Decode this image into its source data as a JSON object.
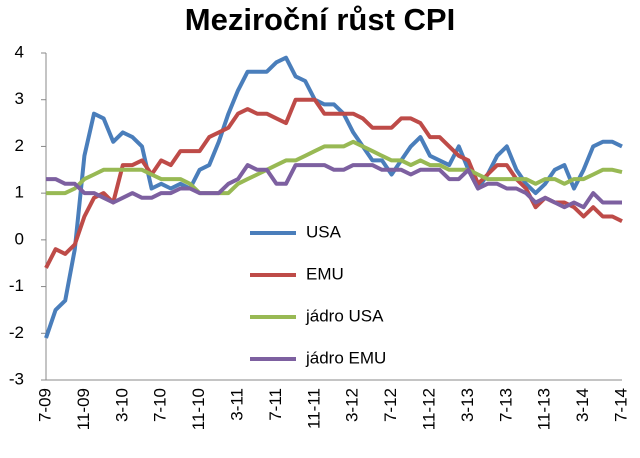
{
  "chart_data": {
    "type": "line",
    "title": "Meziroční růst CPI",
    "categories": [
      "7-09",
      null,
      null,
      null,
      "11-09",
      null,
      null,
      null,
      "3-10",
      null,
      null,
      null,
      "7-10",
      null,
      null,
      null,
      "11-10",
      null,
      null,
      null,
      "3-11",
      null,
      null,
      null,
      "7-11",
      null,
      null,
      null,
      "11-11",
      null,
      null,
      null,
      "3-12",
      null,
      null,
      null,
      "7-12",
      null,
      null,
      null,
      "11-12",
      null,
      null,
      null,
      "3-13",
      null,
      null,
      null,
      "7-13",
      null,
      null,
      null,
      "11-13",
      null,
      null,
      null,
      "3-14",
      null,
      null,
      null,
      "7-14"
    ],
    "series": [
      {
        "name": "USA",
        "color": "#4a7ebb",
        "values": [
          -2.1,
          -1.5,
          -1.3,
          -0.2,
          1.8,
          2.7,
          2.6,
          2.1,
          2.3,
          2.2,
          2.0,
          1.1,
          1.2,
          1.1,
          1.2,
          1.1,
          1.5,
          1.6,
          2.1,
          2.7,
          3.2,
          3.6,
          3.6,
          3.6,
          3.8,
          3.9,
          3.5,
          3.4,
          3.0,
          2.9,
          2.9,
          2.7,
          2.3,
          2.0,
          1.7,
          1.7,
          1.4,
          1.7,
          2.0,
          2.2,
          1.8,
          1.7,
          1.6,
          2.0,
          1.5,
          1.1,
          1.4,
          1.8,
          2.0,
          1.5,
          1.2,
          1.0,
          1.2,
          1.5,
          1.6,
          1.1,
          1.5,
          2.0,
          2.1,
          2.1,
          2.0
        ]
      },
      {
        "name": "EMU",
        "color": "#be4b48",
        "values": [
          -0.6,
          -0.2,
          -0.3,
          -0.1,
          0.5,
          0.9,
          1.0,
          0.8,
          1.6,
          1.6,
          1.7,
          1.4,
          1.7,
          1.6,
          1.9,
          1.9,
          1.9,
          2.2,
          2.3,
          2.4,
          2.7,
          2.8,
          2.7,
          2.7,
          2.6,
          2.5,
          3.0,
          3.0,
          3.0,
          2.7,
          2.7,
          2.7,
          2.7,
          2.6,
          2.4,
          2.4,
          2.4,
          2.6,
          2.6,
          2.5,
          2.2,
          2.2,
          2.0,
          1.8,
          1.7,
          1.2,
          1.4,
          1.6,
          1.6,
          1.3,
          1.1,
          0.7,
          0.9,
          0.8,
          0.8,
          0.7,
          0.5,
          0.7,
          0.5,
          0.5,
          0.4
        ]
      },
      {
        "name": "jádro USA",
        "color": "#98b954",
        "values": [
          1.0,
          1.0,
          1.0,
          1.1,
          1.3,
          1.4,
          1.5,
          1.5,
          1.5,
          1.5,
          1.5,
          1.4,
          1.3,
          1.3,
          1.3,
          1.2,
          1.0,
          1.0,
          1.0,
          1.0,
          1.2,
          1.3,
          1.4,
          1.5,
          1.6,
          1.7,
          1.7,
          1.8,
          1.9,
          2.0,
          2.0,
          2.0,
          2.1,
          2.0,
          1.9,
          1.8,
          1.7,
          1.7,
          1.6,
          1.7,
          1.6,
          1.6,
          1.5,
          1.5,
          1.5,
          1.4,
          1.3,
          1.3,
          1.3,
          1.3,
          1.3,
          1.2,
          1.3,
          1.3,
          1.2,
          1.3,
          1.3,
          1.4,
          1.5,
          1.5,
          1.45
        ]
      },
      {
        "name": "jádro EMU",
        "color": "#7d60a0",
        "values": [
          1.3,
          1.3,
          1.2,
          1.2,
          1.0,
          1.0,
          0.9,
          0.8,
          0.9,
          1.0,
          0.9,
          0.9,
          1.0,
          1.0,
          1.1,
          1.1,
          1.0,
          1.0,
          1.0,
          1.2,
          1.3,
          1.6,
          1.5,
          1.5,
          1.2,
          1.2,
          1.6,
          1.6,
          1.6,
          1.6,
          1.5,
          1.5,
          1.6,
          1.6,
          1.6,
          1.5,
          1.5,
          1.5,
          1.4,
          1.5,
          1.5,
          1.5,
          1.3,
          1.3,
          1.5,
          1.1,
          1.2,
          1.2,
          1.1,
          1.1,
          1.0,
          0.8,
          0.9,
          0.8,
          0.7,
          0.8,
          0.7,
          1.0,
          0.8,
          0.8,
          0.8
        ]
      }
    ],
    "ylim": [
      -3,
      4
    ],
    "yticks": [
      -3,
      -2,
      -1,
      0,
      1,
      2,
      3,
      4
    ],
    "grid": false,
    "legend": "inside-bottom-center"
  }
}
